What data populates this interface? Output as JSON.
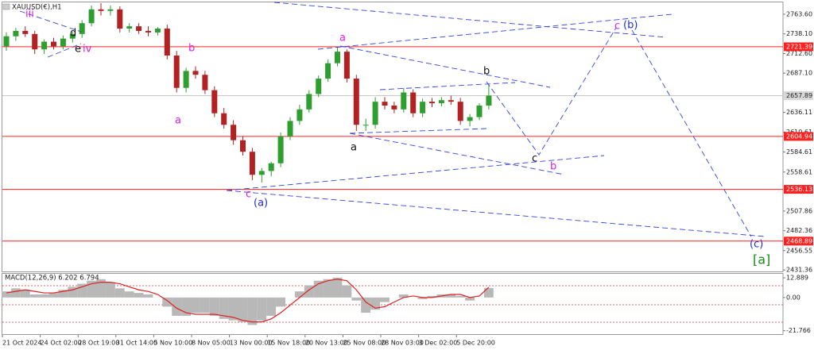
{
  "chart_data": [
    {
      "type": "candlestick",
      "title": "XAUUSD(€),H1",
      "categories": [
        "21 Oct 2024",
        null,
        null,
        null,
        "24 Oct 02:00",
        null,
        null,
        null,
        "28 Oct 19:00",
        null,
        null,
        null,
        "31 Oct 14:00",
        null,
        null,
        null,
        "5 Nov 10:00",
        null,
        null,
        null,
        "8 Nov 05:00",
        null,
        null,
        null,
        "13 Nov 00:00",
        null,
        null,
        null,
        "15 Nov 18:00",
        null,
        null,
        null,
        "20 Nov 13:00",
        null,
        null,
        null,
        "25 Nov 08:00",
        null,
        null,
        null,
        "28 Nov 03:00",
        null,
        null,
        null,
        "3 Dec 02:00",
        null,
        null,
        null,
        "5 Dec 20:00",
        null,
        null,
        null
      ],
      "open": [
        2722,
        2735,
        2742,
        2738,
        2718,
        2728,
        2722,
        2732,
        2738,
        2752,
        2770,
        2768,
        2770,
        2745,
        2748,
        2742,
        2740,
        2745,
        2710,
        2668,
        2690,
        2685,
        2665,
        2635,
        2620,
        2600,
        2585,
        2555,
        2560,
        2570,
        2605,
        2625,
        2640,
        2660,
        2680,
        2700,
        2715,
        2680,
        2620,
        2620,
        2650,
        2645,
        2640,
        2662,
        2635,
        2650,
        2648,
        2652,
        2650,
        2625,
        2630,
        2645
      ],
      "high": [
        2740,
        2746,
        2748,
        2742,
        2731,
        2733,
        2736,
        2741,
        2756,
        2775,
        2778,
        2775,
        2774,
        2752,
        2752,
        2748,
        2747,
        2750,
        2716,
        2694,
        2696,
        2690,
        2670,
        2642,
        2626,
        2605,
        2590,
        2564,
        2572,
        2610,
        2630,
        2646,
        2665,
        2684,
        2705,
        2722,
        2718,
        2685,
        2628,
        2656,
        2656,
        2650,
        2668,
        2666,
        2654,
        2655,
        2656,
        2658,
        2655,
        2634,
        2648,
        2672
      ],
      "low": [
        2716,
        2729,
        2734,
        2712,
        2712,
        2718,
        2718,
        2727,
        2733,
        2748,
        2762,
        2762,
        2740,
        2740,
        2738,
        2735,
        2736,
        2705,
        2662,
        2662,
        2680,
        2660,
        2630,
        2615,
        2594,
        2580,
        2548,
        2545,
        2553,
        2565,
        2600,
        2620,
        2636,
        2656,
        2676,
        2696,
        2675,
        2612,
        2612,
        2615,
        2640,
        2635,
        2636,
        2630,
        2630,
        2643,
        2644,
        2646,
        2620,
        2618,
        2626,
        2640
      ],
      "close": [
        2735,
        2742,
        2738,
        2718,
        2728,
        2722,
        2732,
        2738,
        2752,
        2770,
        2768,
        2770,
        2745,
        2748,
        2742,
        2740,
        2745,
        2710,
        2668,
        2690,
        2685,
        2665,
        2635,
        2620,
        2600,
        2585,
        2555,
        2560,
        2570,
        2605,
        2625,
        2640,
        2660,
        2680,
        2700,
        2715,
        2680,
        2620,
        2620,
        2650,
        2645,
        2640,
        2662,
        2635,
        2650,
        2648,
        2652,
        2650,
        2625,
        2630,
        2645,
        2657.89
      ],
      "up_color": "#2e9e2e",
      "down_color": "#b22222",
      "ylim": [
        2429.5,
        2777
      ],
      "yticks": [
        {
          "value": 2763.6,
          "label": "2763.60"
        },
        {
          "value": 2738.1,
          "label": "2738.10"
        },
        {
          "value": 2712.6,
          "label": "2712.60"
        },
        {
          "value": 2687.1,
          "label": "2687.10"
        },
        {
          "value": 2636.11,
          "label": "2636.11"
        },
        {
          "value": 2610.61,
          "label": "2610.61"
        },
        {
          "value": 2584.61,
          "label": "2584.61"
        },
        {
          "value": 2558.61,
          "label": "2558.61"
        },
        {
          "value": 2507.86,
          "label": "2507.86"
        },
        {
          "value": 2482.36,
          "label": "2482.36"
        },
        {
          "value": 2456.55,
          "label": "2456.55"
        },
        {
          "value": 2431.36,
          "label": "2431.36"
        }
      ],
      "levels": [
        {
          "value": 2721.39,
          "label": "2721.39"
        },
        {
          "value": 2604.94,
          "label": "2604.94"
        },
        {
          "value": 2536.13,
          "label": "2536.13"
        },
        {
          "value": 2468.89,
          "label": "2468.89"
        }
      ],
      "level_color": "#ff2020",
      "current_price": {
        "value": 2657.89,
        "label": "2657.89"
      },
      "annotations": [
        "iii",
        "d",
        "e",
        "iv",
        "b",
        "a",
        "c",
        "(a)",
        "a",
        "a",
        "b",
        "c",
        "b",
        "c",
        "(b)",
        "(c)",
        "[a]"
      ]
    },
    {
      "type": "macd",
      "title": "MACD(12,26,9) 6.202 6.794",
      "histogram": {
        "color": "#b8b8b8",
        "values": [
          4,
          6,
          5,
          2,
          2,
          3,
          5,
          7,
          9,
          11,
          12,
          10,
          6,
          4,
          3,
          2,
          0,
          -6,
          -12,
          -12,
          -10,
          -10,
          -12,
          -14,
          -15,
          -16,
          -18,
          -15,
          -12,
          -6,
          0,
          4,
          8,
          11,
          12,
          13,
          8,
          -2,
          -10,
          -8,
          -3,
          0,
          2,
          0,
          -1,
          1,
          2,
          2,
          1,
          -2,
          0,
          6.202
        ]
      },
      "signal": {
        "color": "#e02020",
        "values": [
          3,
          4,
          5,
          4,
          3,
          3,
          4,
          5,
          7,
          9,
          10,
          10,
          9,
          7,
          5,
          4,
          2,
          -2,
          -7,
          -10,
          -11,
          -11,
          -11,
          -12,
          -13,
          -15,
          -16,
          -16,
          -14,
          -10,
          -5,
          0,
          5,
          9,
          11,
          12,
          11,
          5,
          -3,
          -7,
          -6,
          -3,
          0,
          1,
          0,
          0,
          1,
          2,
          2,
          0,
          1,
          6.794
        ]
      },
      "ylim": [
        -24,
        15
      ],
      "yticks": [
        {
          "value": 12.889,
          "label": "12.889"
        },
        {
          "value": 0,
          "label": "0.00"
        },
        {
          "value": -21.766,
          "label": "-21.766"
        }
      ]
    }
  ]
}
